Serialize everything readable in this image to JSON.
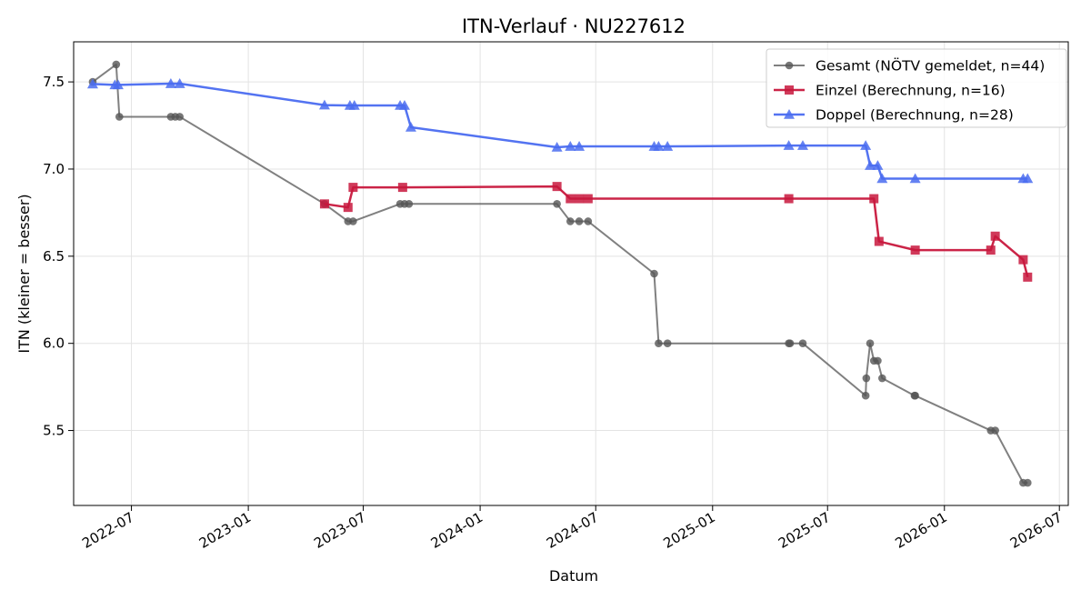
{
  "chart_data": {
    "type": "line",
    "title": "ITN-Verlauf · NU227612",
    "xlabel": "Datum",
    "ylabel": "ITN  (kleiner = besser)",
    "x_ticks": [
      "2022-07",
      "2023-01",
      "2023-07",
      "2024-01",
      "2024-07",
      "2025-01",
      "2025-07",
      "2026-01",
      "2026-07"
    ],
    "y_ticks": [
      5.5,
      6.0,
      6.5,
      7.0,
      7.5
    ],
    "xlim": [
      "2022-04-01",
      "2026-07-15"
    ],
    "ylim": [
      5.07,
      7.73
    ],
    "grid": true,
    "legend_position": "top-right",
    "series": [
      {
        "name": "Gesamt (NÖTV gemeldet, n=44)",
        "color": "#555555",
        "marker": "circle",
        "points": [
          [
            "2022-05-01",
            7.5
          ],
          [
            "2022-06-07",
            7.6
          ],
          [
            "2022-06-12",
            7.3
          ],
          [
            "2022-09-01",
            7.3
          ],
          [
            "2022-09-08",
            7.3
          ],
          [
            "2022-09-15",
            7.3
          ],
          [
            "2023-05-01",
            6.8
          ],
          [
            "2023-06-07",
            6.7
          ],
          [
            "2023-06-15",
            6.7
          ],
          [
            "2023-08-28",
            6.8
          ],
          [
            "2023-09-04",
            6.8
          ],
          [
            "2023-09-11",
            6.8
          ],
          [
            "2024-05-01",
            6.8
          ],
          [
            "2024-05-22",
            6.7
          ],
          [
            "2024-06-05",
            6.7
          ],
          [
            "2024-06-19",
            6.7
          ],
          [
            "2024-10-01",
            6.4
          ],
          [
            "2024-10-08",
            6.0
          ],
          [
            "2024-10-22",
            6.0
          ],
          [
            "2025-05-01",
            6.0
          ],
          [
            "2025-05-03",
            6.0
          ],
          [
            "2025-05-23",
            6.0
          ],
          [
            "2025-08-30",
            5.7
          ],
          [
            "2025-08-31",
            5.8
          ],
          [
            "2025-09-06",
            6.0
          ],
          [
            "2025-09-12",
            5.9
          ],
          [
            "2025-09-18",
            5.9
          ],
          [
            "2025-09-25",
            5.8
          ],
          [
            "2025-11-15",
            5.7
          ],
          [
            "2025-11-16",
            5.7
          ],
          [
            "2026-03-15",
            5.5
          ],
          [
            "2026-03-22",
            5.5
          ],
          [
            "2026-05-05",
            5.2
          ],
          [
            "2026-05-12",
            5.2
          ]
        ]
      },
      {
        "name": "Einzel (Berechnung, n=16)",
        "color": "#c8183d",
        "marker": "square",
        "points": [
          [
            "2023-05-01",
            6.8
          ],
          [
            "2023-06-07",
            6.78
          ],
          [
            "2023-06-15",
            6.895
          ],
          [
            "2023-09-01",
            6.895
          ],
          [
            "2024-05-01",
            6.9
          ],
          [
            "2024-05-22",
            6.83
          ],
          [
            "2024-06-05",
            6.83
          ],
          [
            "2024-06-19",
            6.83
          ],
          [
            "2025-05-01",
            6.83
          ],
          [
            "2025-09-12",
            6.83
          ],
          [
            "2025-09-20",
            6.585
          ],
          [
            "2025-11-16",
            6.535
          ],
          [
            "2026-03-15",
            6.535
          ],
          [
            "2026-03-22",
            6.615
          ],
          [
            "2026-05-05",
            6.48
          ],
          [
            "2026-05-12",
            6.38
          ]
        ]
      },
      {
        "name": "Doppel (Berechnung, n=28)",
        "color": "#4a6cf0",
        "marker": "triangle",
        "points": [
          [
            "2022-05-01",
            7.488
          ],
          [
            "2022-06-05",
            7.483
          ],
          [
            "2022-06-10",
            7.483
          ],
          [
            "2022-09-01",
            7.49
          ],
          [
            "2022-09-15",
            7.49
          ],
          [
            "2023-05-01",
            7.367
          ],
          [
            "2023-06-10",
            7.365
          ],
          [
            "2023-06-17",
            7.365
          ],
          [
            "2023-08-28",
            7.365
          ],
          [
            "2023-09-04",
            7.365
          ],
          [
            "2023-09-14",
            7.24
          ],
          [
            "2024-05-01",
            7.125
          ],
          [
            "2024-05-22",
            7.13
          ],
          [
            "2024-06-05",
            7.13
          ],
          [
            "2024-10-01",
            7.13
          ],
          [
            "2024-10-08",
            7.13
          ],
          [
            "2024-10-22",
            7.13
          ],
          [
            "2025-05-01",
            7.135
          ],
          [
            "2025-05-23",
            7.135
          ],
          [
            "2025-08-30",
            7.135
          ],
          [
            "2025-09-06",
            7.02
          ],
          [
            "2025-09-18",
            7.02
          ],
          [
            "2025-09-25",
            6.945
          ],
          [
            "2025-11-16",
            6.945
          ],
          [
            "2026-05-05",
            6.945
          ],
          [
            "2026-05-12",
            6.945
          ]
        ]
      }
    ]
  }
}
